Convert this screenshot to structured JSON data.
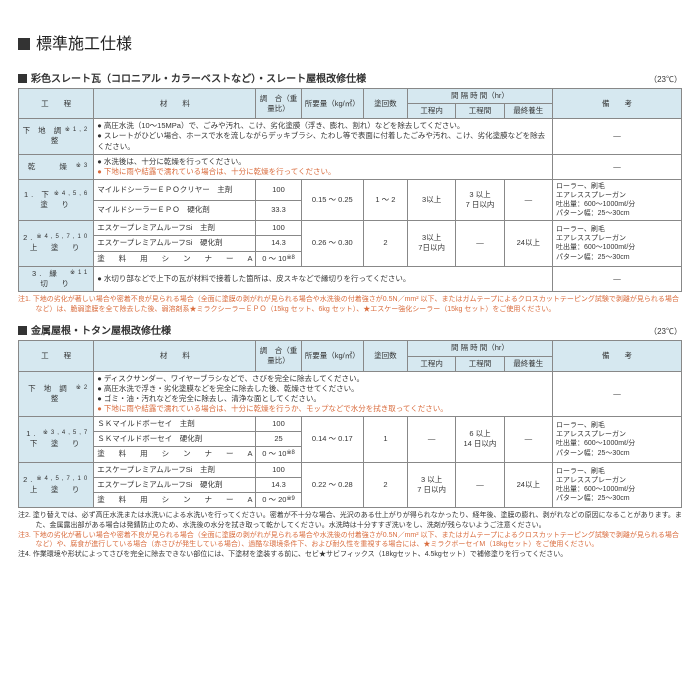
{
  "main_title": "標準施工仕様",
  "temp_note": "（23℃）",
  "section1": {
    "title": "彩色スレート瓦（コロニアル・カラーベストなど）・スレート屋根改修仕様",
    "headers": {
      "process": "工　　程",
      "material": "材　　料",
      "ratio": "調　合（重量比）",
      "amount": "所要量（kg/㎡）",
      "coats": "塗回数",
      "interval": "間 隔 時 間（hr）",
      "int_in": "工程内",
      "int_bw": "工程間",
      "int_final": "最終養生",
      "remark": "備　　考"
    },
    "rows": {
      "prep_label": "下 地 調 整",
      "prep1_sup": "※1,2",
      "prep1": "● 高圧水洗（10～15MPa）で、ごみや汚れ、こけ、劣化塗膜（浮き、膨れ、割れ）などを除去してください。",
      "prep2": "● スレートがひどい場合、ホースで水を流しながらデッキブラシ、たわし等で表面に付着したごみや汚れ、こけ、劣化塗膜などを除去ください。",
      "dry_label": "乾　　燥",
      "dry_sup": "※3",
      "dry1": "● 水洗後は、十分に乾燥を行ってください。",
      "dry2": "● 下地に雨や結露で濡れている場合は、十分に乾燥を行ってください。",
      "r1_label": "1. 下　塗　り",
      "r1_sup": "※4,5,6",
      "r1_m1": "マイルドシーラーＥＰＯクリヤー　主剤",
      "r1_v1": "100",
      "r1_m2": "マイルドシーラーＥＰＯ　硬化剤",
      "r1_v2": "33.3",
      "r1_amt": "0.15 ～ 0.25",
      "r1_coats": "1 ～ 2",
      "r1_in": "3以上",
      "r1_bw": "3 以上\n7 日以内",
      "r2_label": "2. 上　塗　り",
      "r2_sup": "※4,5,7,10",
      "r2_m1": "エスケープレミアムルーフSi　主剤",
      "r2_v1": "100",
      "r2_m2": "エスケープレミアムルーフSi　硬化剤",
      "r2_v2": "14.3",
      "r2_m3": "塗　料　用　シ　ン　ナ　ー　A",
      "r2_v3": "0 ～ 10",
      "r2_amt": "0.26 ～ 0.30",
      "r2_coats": "2",
      "r2_in": "3以上\n7日以内",
      "r2_final": "24以上",
      "r3_label": "3. 縁　切　り",
      "r3_sup": "※11",
      "r3_txt": "● 水切り部などで上下の瓦が材料で接着した箇所は、皮スキなどで縁切りを行ってください。",
      "remark_txt": "ローラー、刷毛\nエアレススプレーガン\n吐出量：600～1000mℓ/分\nパターン幅：25～30cm",
      "note1": "注1. 下地の劣化が著しい場合や密着不良が見られる場合（全面に塗膜の剥がれが見られる場合や水洗後の付着強さが0.5N／mm² 以下、またはガムテープによるクロスカットテーピング試験で剥離が見られる場合など）は、脆弱塗膜を全て除去した後、弱溶剤系★ミラクシーラーＥＰＯ（15kg セット、6kg セット）、★エスケー強化シーラー（15kg セット）をご使用ください。"
    }
  },
  "section2": {
    "title": "金属屋根・トタン屋根改修仕様",
    "rows": {
      "prep_label": "下 地 調 整",
      "prep_sup": "※2",
      "prep1": "● ディスクサンダー、ワイヤーブラシなどで、さびを完全に除去してください。",
      "prep2": "● 高圧水洗で浮き・劣化塗膜などを完全に除去した後、乾燥させてください。",
      "prep3": "● ゴミ・油・汚れなどを完全に除去し、清浄な面としてください。",
      "prep4": "● 下地に雨や結露で濡れている場合は、十分に乾燥を行うか、モップなどで水分を拭き取ってください。",
      "r1_label": "1. 下　塗　り",
      "r1_sup": "※3,4,5,7",
      "r1_m1": "ＳＫマイルドボーセイ　主剤",
      "r1_v1": "100",
      "r1_m2": "ＳＫマイルドボーセイ　硬化剤",
      "r1_v2": "25",
      "r1_m3": "塗　料　用　シ　ン　ナ　ー　A",
      "r1_v3": "0 ～ 10",
      "r1_amt": "0.14 ～ 0.17",
      "r1_coats": "1",
      "r1_bw": "6 以上\n14 日以内",
      "r2_label": "2. 上　塗　り",
      "r2_sup": "※4,5,7,10",
      "r2_m1": "エスケープレミアムルーフSi　主剤",
      "r2_v1": "100",
      "r2_m2": "エスケープレミアムルーフSi　硬化剤",
      "r2_v2": "14.3",
      "r2_m3": "塗　料　用　シ　ン　ナ　ー　A",
      "r2_v3": "0 ～ 20",
      "r2_amt": "0.22 ～ 0.28",
      "r2_coats": "2",
      "r2_in": "3 以上\n7 日以内",
      "r2_final": "24以上",
      "sup8": "※8",
      "sup9": "※9",
      "remark_txt": "ローラー、刷毛\nエアレススプレーガン\n吐出量：600～1000mℓ/分\nパターン幅：25～30cm"
    },
    "notes": {
      "n2": "注2. 塗り替えでは、必ず高圧水洗または水洗いによる水洗いを行ってください。密着が不十分な場合、光沢のある仕上がりが得られなかったり、経年後、塗膜の膨れ、剥がれなどの原因になることがあります。また、金属露出部がある場合は発錆防止のため、水洗後の水分を拭き取って乾かしてください。水洗時は十分すすぎ洗いをし、洗剤が残らないようご注意ください。",
      "n3": "注3. 下地の劣化が著しい場合や密着不良が見られる場合（全面に塗膜の剥がれが見られる場合や水洗後の付着強さが0.5N／mm² 以下、またはガムテープによるクロスカットテーピング試験で剥離が見られる場合など）や、腐食が進行している場合（赤さびが発生している場合）、過酷な環境条件下、および耐久性を重視する場合には、★ミラクボーセイM（18kgセット）をご使用ください。",
      "n4": "注4. 作業環境や形状によってさびを完全に除去できない部位には、下塗材を塗装する前に、セビ★サビフィックス（18kgセット、4.5kgセット）で補修塗りを行ってください。"
    }
  }
}
